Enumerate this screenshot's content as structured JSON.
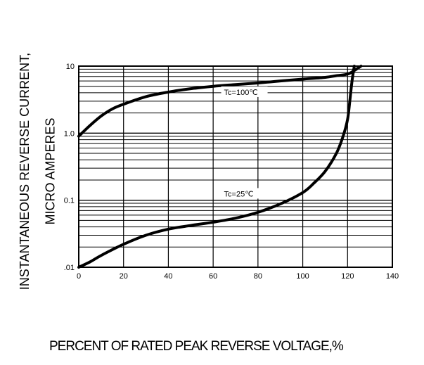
{
  "chart_data": {
    "type": "line",
    "title": "",
    "xlabel": "PERCENT OF RATED PEAK REVERSE VOLTAGE,%",
    "ylabel_lines": [
      "INSTANTANEOUS REVERSE CURRENT,",
      "MICRO AMPERES"
    ],
    "xlim": [
      0,
      140
    ],
    "ylim": [
      0.01,
      10
    ],
    "yscale": "log",
    "grid": true,
    "xticks": [
      0,
      20,
      40,
      60,
      80,
      100,
      120,
      140
    ],
    "xtick_labels": [
      "0",
      "20",
      "40",
      "60",
      "80",
      "100",
      "120",
      "140"
    ],
    "yticks": [
      0.01,
      0.1,
      1,
      10
    ],
    "ytick_labels": [
      ".01",
      "0.1",
      "1.0",
      "10"
    ],
    "series": [
      {
        "name": "Tc=100℃",
        "x": [
          0,
          5,
          10,
          15,
          20,
          30,
          40,
          50,
          60,
          70,
          80,
          90,
          100,
          110,
          115,
          120,
          123,
          126
        ],
        "y": [
          0.9,
          1.3,
          1.8,
          2.3,
          2.7,
          3.5,
          4.1,
          4.6,
          5.0,
          5.3,
          5.6,
          6.0,
          6.4,
          6.8,
          7.2,
          7.6,
          8.6,
          10
        ]
      },
      {
        "name": "Tc=25℃",
        "x": [
          0,
          5,
          10,
          20,
          30,
          40,
          50,
          60,
          70,
          80,
          90,
          100,
          105,
          110,
          115,
          118,
          120,
          121,
          122,
          123
        ],
        "y": [
          0.01,
          0.012,
          0.015,
          0.022,
          0.03,
          0.037,
          0.042,
          0.047,
          0.054,
          0.066,
          0.088,
          0.13,
          0.18,
          0.27,
          0.5,
          0.9,
          1.6,
          3,
          6,
          10
        ]
      }
    ]
  }
}
